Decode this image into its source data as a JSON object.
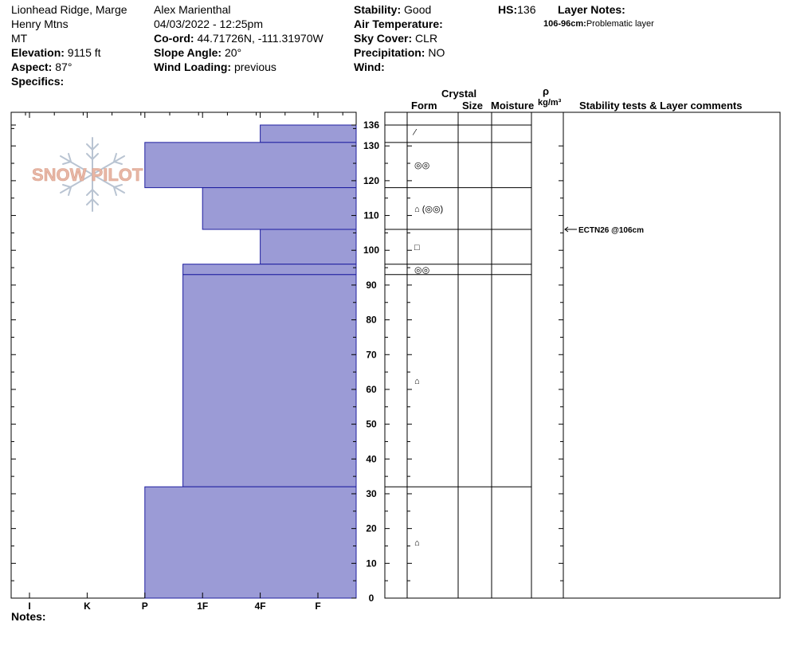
{
  "location": {
    "line1": "Lionhead Ridge, Marge",
    "line2": "Henry Mtns",
    "line3": "MT",
    "elevation_label": "Elevation:",
    "elevation_value": "9115 ft",
    "aspect_label": "Aspect:",
    "aspect_value": "87°",
    "specifics_label": "Specifics:"
  },
  "observer": {
    "name": "Alex Marienthal",
    "datetime": "04/03/2022 - 12:25pm",
    "coord_label": "Co-ord:",
    "coord_value": "44.71726N, -111.31970W",
    "slope_label": "Slope Angle:",
    "slope_value": "20°",
    "wind_loading_label": "Wind Loading:",
    "wind_loading_value": "previous"
  },
  "conditions": {
    "stability_label": "Stability:",
    "stability_value": "Good",
    "air_temp_label": "Air Temperature:",
    "sky_label": "Sky Cover:",
    "sky_value": "CLR",
    "precip_label": "Precipitation:",
    "precip_value": "NO",
    "wind_label": "Wind:"
  },
  "hs": {
    "label": "HS:",
    "value": "136"
  },
  "layer_notes": {
    "title": "Layer Notes:",
    "range": "106-96cm:",
    "text": "Problematic layer"
  },
  "logo": {
    "text": "SNOW PILOT"
  },
  "column_headers": {
    "crystal": "Crystal",
    "form": "Form",
    "size": "Size",
    "moisture": "Moisture",
    "rho": "ρ",
    "density_unit": "kg/m³",
    "stability": "Stability tests & Layer comments"
  },
  "stability_test": {
    "text": "ECTN26 @106cm",
    "height": 106
  },
  "notes_label": "Notes:",
  "colors": {
    "bar_fill": "#9b9bd6",
    "bar_stroke": "#1f1fa0"
  },
  "chart_data": {
    "type": "bar",
    "title": "",
    "ylabel": "",
    "xlabel": "",
    "ylim": [
      0,
      136
    ],
    "hardness_ticks": [
      "I",
      "K",
      "P",
      "1F",
      "4F",
      "F"
    ],
    "y_tick_labels": [
      "0",
      "10",
      "20",
      "30",
      "40",
      "50",
      "60",
      "70",
      "80",
      "90",
      "100",
      "110",
      "120",
      "130",
      "136"
    ],
    "layers": [
      {
        "top": 136,
        "bottom": 131,
        "hardness": "4F"
      },
      {
        "top": 131,
        "bottom": 118,
        "hardness": "P"
      },
      {
        "top": 118,
        "bottom": 106,
        "hardness": "1F"
      },
      {
        "top": 106,
        "bottom": 96,
        "hardness": "4F"
      },
      {
        "top": 96,
        "bottom": 93,
        "hardness": "1F+"
      },
      {
        "top": 93,
        "bottom": 32,
        "hardness": "1F+"
      },
      {
        "top": 32,
        "bottom": 0,
        "hardness": "P"
      }
    ],
    "hardness_scale": {
      "I": 1,
      "K": 2,
      "P": 3,
      "1F+": 3.66,
      "1F": 4,
      "4F": 5,
      "F": 6
    },
    "layer_boundaries": [
      136,
      131,
      118,
      106,
      96,
      93,
      32,
      0
    ],
    "grains": [
      {
        "height": 134,
        "symbol": "⁄"
      },
      {
        "height": 124.5,
        "symbol": "◎◎"
      },
      {
        "height": 112,
        "symbol": "⌂ (◎◎)"
      },
      {
        "height": 101,
        "symbol": "□"
      },
      {
        "height": 94.5,
        "symbol": "◎◎"
      },
      {
        "height": 62.5,
        "symbol": "⌂"
      },
      {
        "height": 16,
        "symbol": "⌂"
      }
    ]
  }
}
